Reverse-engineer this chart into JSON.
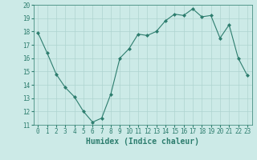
{
  "x": [
    0,
    1,
    2,
    3,
    4,
    5,
    6,
    7,
    8,
    9,
    10,
    11,
    12,
    13,
    14,
    15,
    16,
    17,
    18,
    19,
    20,
    21,
    22,
    23
  ],
  "y": [
    17.9,
    16.4,
    14.8,
    13.8,
    13.1,
    12.0,
    11.2,
    11.5,
    13.3,
    16.0,
    16.7,
    17.8,
    17.7,
    18.0,
    18.8,
    19.3,
    19.2,
    19.7,
    19.1,
    19.2,
    17.5,
    18.5,
    16.0,
    14.7
  ],
  "xlim": [
    -0.5,
    23.5
  ],
  "ylim": [
    11,
    20
  ],
  "yticks": [
    11,
    12,
    13,
    14,
    15,
    16,
    17,
    18,
    19,
    20
  ],
  "xticks": [
    0,
    1,
    2,
    3,
    4,
    5,
    6,
    7,
    8,
    9,
    10,
    11,
    12,
    13,
    14,
    15,
    16,
    17,
    18,
    19,
    20,
    21,
    22,
    23
  ],
  "xlabel": "Humidex (Indice chaleur)",
  "line_color": "#2d7d6e",
  "marker": "D",
  "marker_size": 2,
  "bg_color": "#cceae7",
  "grid_color": "#aed4d0",
  "tick_color": "#2d7d6e",
  "label_color": "#2d7d6e",
  "tick_fontsize": 5.5,
  "xlabel_fontsize": 7
}
